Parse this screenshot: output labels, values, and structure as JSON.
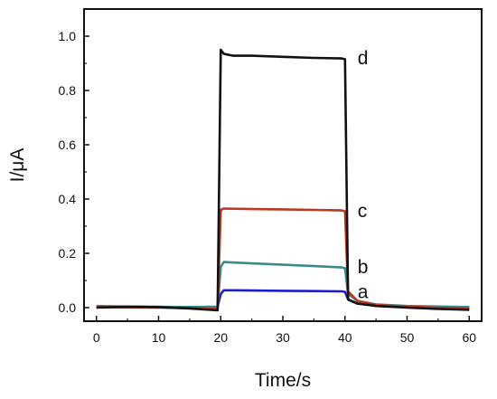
{
  "chart_data": {
    "type": "line",
    "xlabel": "Time/s",
    "ylabel": "I/μA",
    "xlim": [
      -2,
      62
    ],
    "ylim": [
      -0.05,
      1.1
    ],
    "xticks": [
      0,
      10,
      20,
      30,
      40,
      50,
      60
    ],
    "yticks": [
      0.0,
      0.2,
      0.4,
      0.6,
      0.8,
      1.0
    ],
    "xtick_labels": [
      "0",
      "10",
      "20",
      "30",
      "40",
      "50",
      "60"
    ],
    "ytick_labels": [
      "0.0",
      "0.2",
      "0.4",
      "0.6",
      "0.8",
      "1.0"
    ],
    "grid": false,
    "series": [
      {
        "name": "a",
        "color": "#1c1cd0",
        "x": [
          0,
          5,
          10,
          15,
          19.5,
          20,
          20.5,
          25,
          30,
          35,
          39.5,
          40,
          40.5,
          42,
          45,
          50,
          55,
          60
        ],
        "y": [
          0.003,
          0.004,
          0.002,
          0.002,
          0.003,
          0.05,
          0.064,
          0.063,
          0.062,
          0.061,
          0.06,
          0.058,
          0.03,
          0.015,
          0.008,
          0.004,
          0.002,
          0.001
        ]
      },
      {
        "name": "b",
        "color": "#3b8a8c",
        "x": [
          0,
          5,
          10,
          15,
          19.5,
          20,
          20.5,
          25,
          30,
          35,
          39.5,
          40,
          40.5,
          42,
          45,
          50,
          55,
          60
        ],
        "y": [
          0.006,
          0.004,
          0.003,
          0.002,
          0.003,
          0.15,
          0.168,
          0.163,
          0.158,
          0.153,
          0.148,
          0.145,
          0.05,
          0.025,
          0.012,
          0.006,
          0.004,
          0.002
        ]
      },
      {
        "name": "c",
        "color": "#b83a22",
        "x": [
          0,
          5,
          10,
          15,
          19.5,
          20,
          20.5,
          25,
          30,
          35,
          39.5,
          40,
          40.5,
          42,
          45,
          50,
          55,
          60
        ],
        "y": [
          0.002,
          0.001,
          0.0,
          -0.002,
          -0.003,
          0.36,
          0.365,
          0.363,
          0.362,
          0.36,
          0.358,
          0.355,
          0.06,
          0.025,
          0.01,
          0.004,
          0.0,
          -0.003
        ]
      },
      {
        "name": "d",
        "color": "#111111",
        "x": [
          0,
          5,
          10,
          15,
          19.5,
          20,
          20.5,
          22,
          25,
          30,
          35,
          39.5,
          40,
          40.5,
          42,
          45,
          50,
          55,
          60
        ],
        "y": [
          0.0,
          0.003,
          0.002,
          -0.003,
          -0.01,
          0.95,
          0.935,
          0.928,
          0.928,
          0.924,
          0.92,
          0.918,
          0.915,
          0.03,
          0.015,
          0.006,
          0.0,
          -0.005,
          -0.008
        ]
      }
    ]
  }
}
